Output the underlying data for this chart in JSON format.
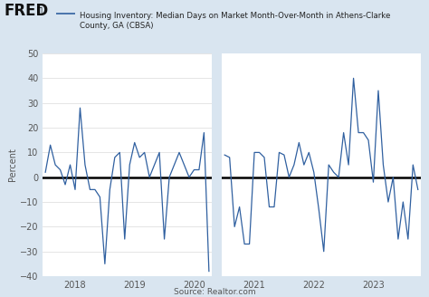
{
  "title": "Housing Inventory: Median Days on Market Month-Over-Month in Athens-Clarke\nCounty, GA (CBSA)",
  "ylabel": "Percent",
  "source": "Source: Realtor.com",
  "ylim": [
    -40,
    50
  ],
  "yticks": [
    -40,
    -30,
    -20,
    -10,
    0,
    10,
    20,
    30,
    40,
    50
  ],
  "fig_bg_color": "#d9e5f0",
  "plot_bg_color": "#ffffff",
  "line_color": "#3060a0",
  "zero_line_color": "#000000",
  "grid_color": "#e0e0e0",
  "y_values_left": [
    2,
    13,
    5,
    3,
    -3,
    5,
    -5,
    28,
    5,
    -5,
    -5,
    -8,
    -35,
    -5,
    8,
    10,
    -25,
    5,
    14,
    8,
    10,
    0,
    5,
    10,
    -25,
    0,
    5,
    10,
    5,
    0,
    3,
    3,
    18,
    -38
  ],
  "y_values_right": [
    9,
    8,
    -20,
    -12,
    -27,
    -27,
    10,
    10,
    8,
    -12,
    -12,
    10,
    9,
    0,
    5,
    14,
    5,
    10,
    2,
    -13,
    -30,
    5,
    2,
    0,
    18,
    5,
    40,
    18,
    18,
    15,
    -2,
    35,
    5,
    -10,
    0,
    -25,
    -10,
    -25,
    5,
    -5
  ],
  "x_tick_labels_left": [
    "2018",
    "2019",
    "2020"
  ],
  "x_tick_labels_right": [
    "2021",
    "2022",
    "2023"
  ],
  "shade_gap_color": "#d9e5f0"
}
